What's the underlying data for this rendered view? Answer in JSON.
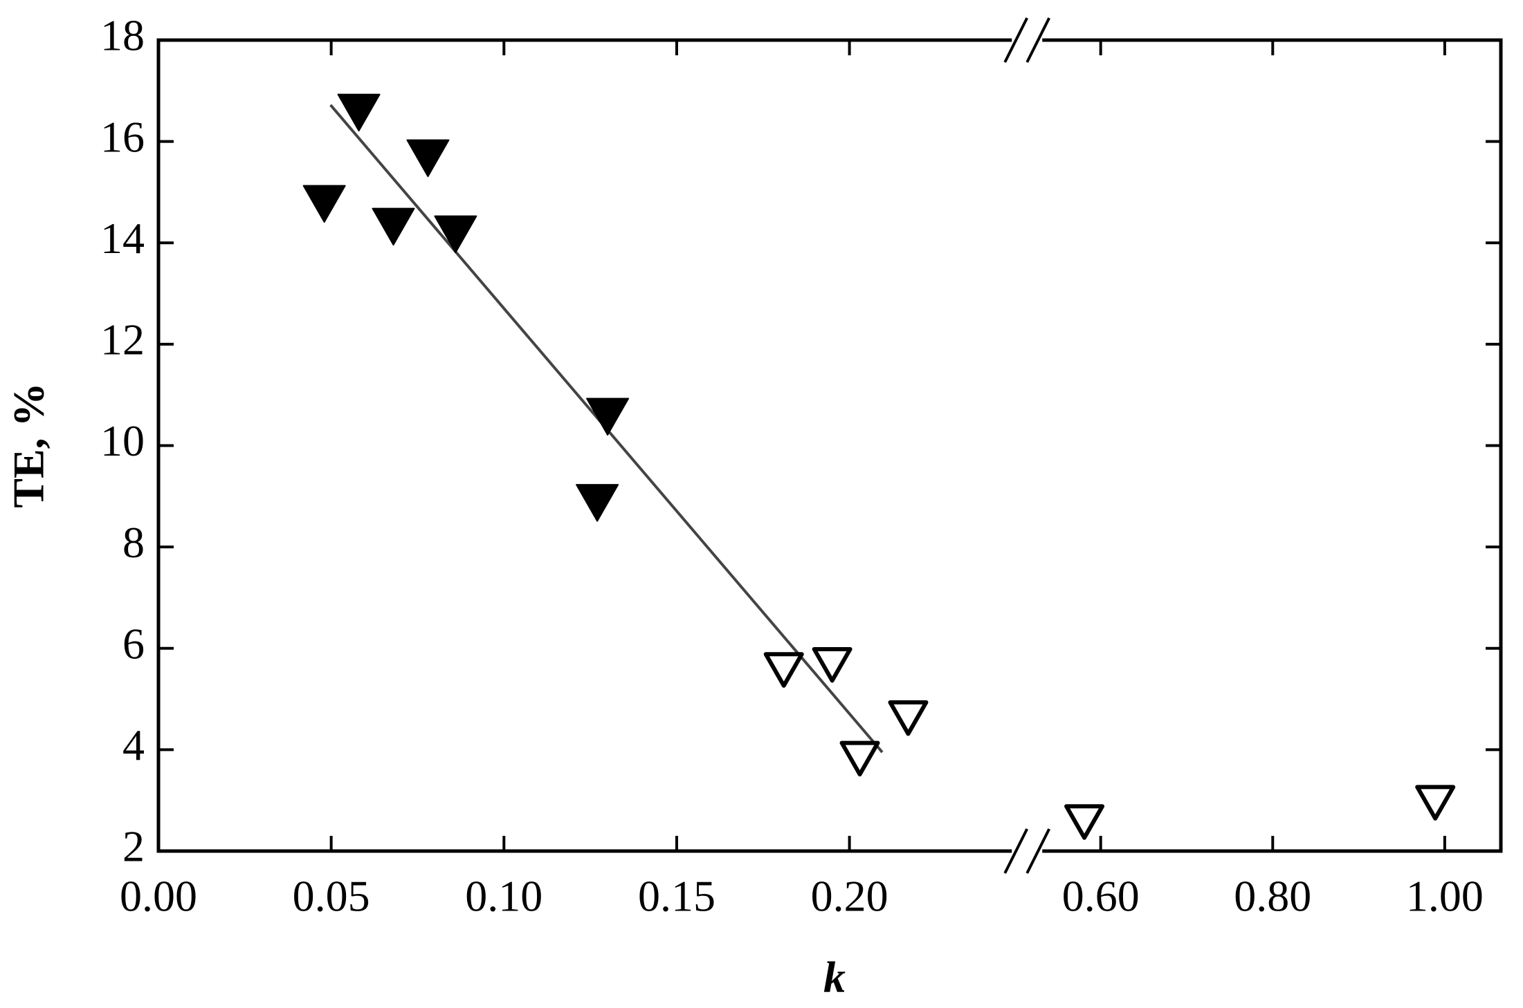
{
  "chart_data": {
    "type": "scatter",
    "x_label": "k",
    "y_label": "TE, %",
    "xlim": [
      0,
      1.065
    ],
    "xbreak": [
      0.25,
      0.52
    ],
    "xticks": [
      {
        "value": 0,
        "label": "0.00"
      },
      {
        "value": 0.05,
        "label": "0.05"
      },
      {
        "value": 0.1,
        "label": "0.10"
      },
      {
        "value": 0.15,
        "label": "0.15"
      },
      {
        "value": 0.2,
        "label": "0.20"
      },
      {
        "value": 0.6,
        "label": "0.60"
      },
      {
        "value": 0.8,
        "label": "0.80"
      },
      {
        "value": 1.0,
        "label": "1.00"
      }
    ],
    "ylim": [
      2,
      18
    ],
    "yticks": [
      2,
      4,
      6,
      8,
      10,
      12,
      14,
      16,
      18
    ],
    "series": [
      {
        "style": "filled",
        "color": "#000000",
        "x": [
          0.048,
          0.058,
          0.068,
          0.078,
          0.086,
          0.13,
          0.127
        ],
        "values": [
          14.8,
          16.6,
          14.35,
          15.7,
          14.2,
          10.6,
          8.9
        ]
      },
      {
        "style": "open",
        "color": "#000000",
        "x": [
          0.181,
          0.195,
          0.203,
          0.217,
          0.581,
          0.989
        ],
        "values": [
          5.6,
          5.7,
          3.85,
          4.65,
          2.6,
          2.98
        ]
      },
      {
        "style": "line",
        "color": "#444444",
        "x": [
          0.0498,
          0.2095
        ],
        "values": [
          16.72,
          3.95
        ]
      }
    ]
  }
}
